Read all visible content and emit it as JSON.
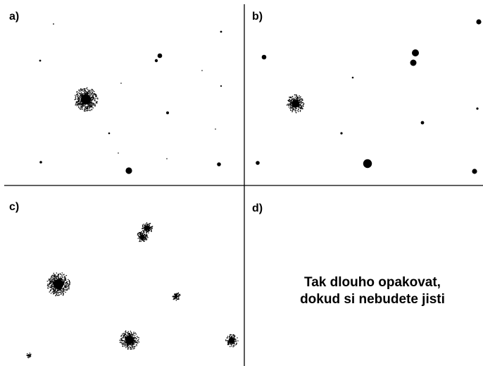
{
  "panels": [
    {
      "label": "a)"
    },
    {
      "label": "b)"
    },
    {
      "label": "c)"
    },
    {
      "label": "d)"
    }
  ],
  "caption": {
    "line1": "Tak dlouho opakovat,",
    "line2": "dokud si nebudete jisti"
  },
  "colors": {
    "ink": "#000000",
    "background": "#ffffff"
  }
}
